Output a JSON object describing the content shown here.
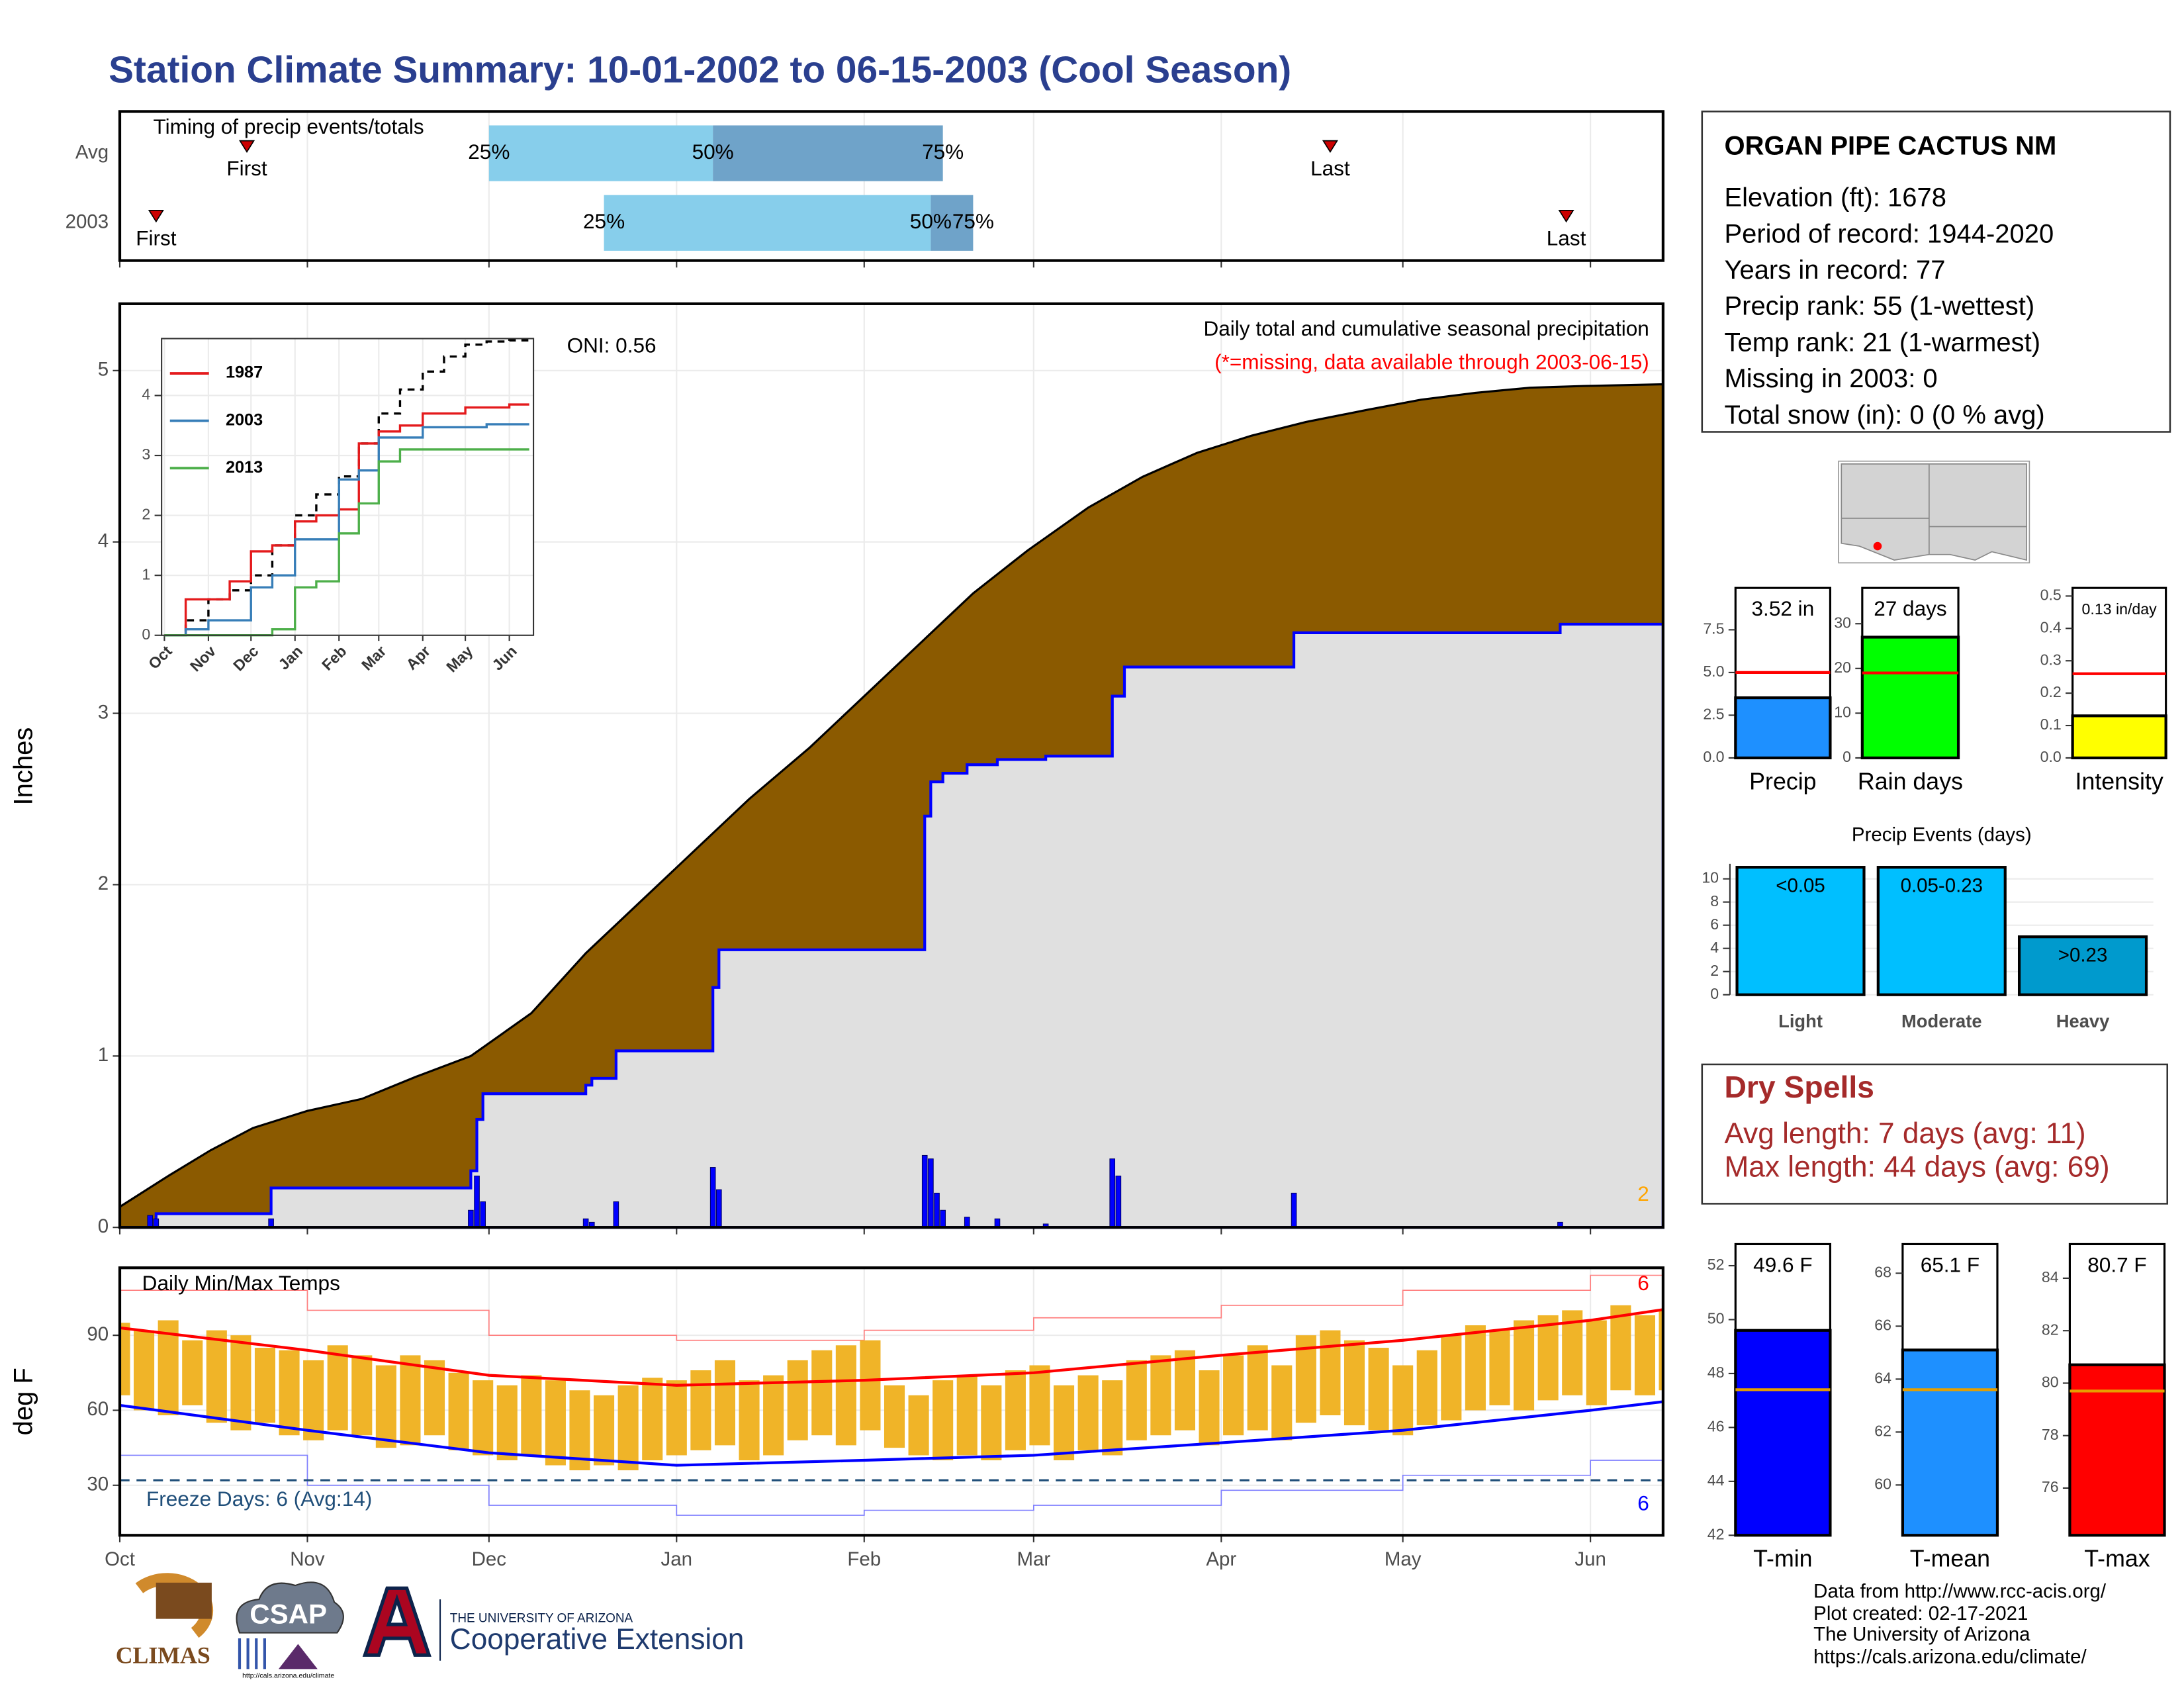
{
  "title": "Station Climate Summary: 10-01-2002 to 06-15-2003 (Cool Season)",
  "station": {
    "name": "ORGAN PIPE CACTUS NM",
    "lines": [
      "Elevation (ft): 1678",
      "Period of record: 1944-2020",
      "Years in record: 77",
      "Precip rank: 55 (1-wettest)",
      "Temp rank: 21 (1-warmest)",
      "Missing in 2003: 0",
      "Total snow (in): 0 (0 % avg)"
    ]
  },
  "dry_spells": {
    "title": "Dry Spells",
    "lines": [
      "Avg length: 7 days (avg: 11)",
      "Max length: 44 days (avg: 69)"
    ]
  },
  "footer": [
    "Data from http://www.rcc-acis.org/",
    "Plot created: 02-17-2021",
    "The University of Arizona",
    "https://cals.arizona.edu/climate/"
  ],
  "logos": {
    "climas": "CLIMAS",
    "csap": "CSAP",
    "csap_url": "http://cals.arizona.edu/climate",
    "university": "THE UNIVERSITY OF ARIZONA",
    "extension": "Cooperative Extension"
  },
  "chart_data": [
    {
      "type": "timing",
      "title": "Timing of precip events/totals",
      "categories": [
        "Avg",
        "2003"
      ],
      "series": [
        {
          "name": "First",
          "values": [
            21,
            6
          ]
        },
        {
          "name": "25%",
          "values": [
            61,
            80
          ]
        },
        {
          "name": "50%",
          "values": [
            98,
            134
          ]
        },
        {
          "name": "75%",
          "values": [
            136,
            141
          ]
        },
        {
          "name": "Last",
          "values": [
            200,
            239
          ]
        }
      ],
      "colors": [
        "#87ceeb",
        "#6fa3c9"
      ],
      "marker_color": "#cc0000",
      "xlim": [
        0,
        255
      ],
      "xticks": [
        0,
        31,
        61,
        92,
        123,
        151,
        182,
        212,
        243
      ],
      "grid": true
    },
    {
      "type": "cumulative",
      "title": "Daily total and cumulative seasonal precipitation",
      "subtitle": "(*=missing, data available through 2003-06-15)",
      "annotation": "ONI: 0.56",
      "corner_label": 2,
      "ylabel": "Inches",
      "xlim": [
        0,
        255
      ],
      "ylim": [
        0,
        5.39
      ],
      "xticks": [
        0,
        31,
        61,
        92,
        123,
        151,
        182,
        212,
        243
      ],
      "yticks": [
        0,
        1,
        2,
        3,
        4,
        5
      ],
      "grid": true,
      "average": {
        "color": "#8b5a00",
        "x": [
          0,
          8,
          15,
          22,
          31,
          40,
          49,
          58,
          68,
          77,
          86,
          95,
          104,
          114,
          123,
          132,
          141,
          150,
          160,
          169,
          178,
          187,
          196,
          206,
          215,
          224,
          233,
          242,
          255
        ],
        "values": [
          0.12,
          0.3,
          0.45,
          0.58,
          0.68,
          0.75,
          0.88,
          1.0,
          1.25,
          1.6,
          1.9,
          2.2,
          2.5,
          2.8,
          3.1,
          3.4,
          3.7,
          3.95,
          4.2,
          4.38,
          4.52,
          4.62,
          4.7,
          4.77,
          4.83,
          4.87,
          4.9,
          4.91,
          4.92
        ]
      },
      "cumulative": {
        "color": "#0000ff",
        "fill": "#e0e0e0",
        "x": [
          0,
          6,
          25,
          58,
          59,
          60,
          77,
          78,
          82,
          98,
          99,
          133,
          134,
          136,
          140,
          145,
          153,
          164,
          166,
          194,
          238,
          255
        ],
        "values": [
          0,
          0.08,
          0.23,
          0.33,
          0.63,
          0.78,
          0.83,
          0.87,
          1.03,
          1.4,
          1.62,
          2.4,
          2.6,
          2.65,
          2.7,
          2.73,
          2.75,
          3.1,
          3.27,
          3.47,
          3.52,
          3.52
        ]
      },
      "daily": {
        "color": "#0000ff",
        "x": [
          5,
          6,
          25,
          58,
          59,
          60,
          77,
          78,
          82,
          98,
          99,
          133,
          134,
          135,
          136,
          140,
          145,
          153,
          164,
          165,
          194,
          238
        ],
        "values": [
          0.07,
          0.05,
          0.05,
          0.1,
          0.3,
          0.15,
          0.05,
          0.03,
          0.15,
          0.35,
          0.22,
          0.42,
          0.4,
          0.2,
          0.1,
          0.06,
          0.05,
          0.02,
          0.4,
          0.3,
          0.2,
          0.03
        ]
      }
    },
    {
      "type": "line",
      "legend": "top-left",
      "xlim": [
        -2,
        260
      ],
      "ylim": [
        0,
        4.95
      ],
      "xticks": [
        {
          "value": 0,
          "label": "Oct"
        },
        {
          "value": 31,
          "label": "Nov"
        },
        {
          "value": 61,
          "label": "Dec"
        },
        {
          "value": 92,
          "label": "Jan"
        },
        {
          "value": 123,
          "label": "Feb"
        },
        {
          "value": 151,
          "label": "Mar"
        },
        {
          "value": 182,
          "label": "Apr"
        },
        {
          "value": 212,
          "label": "May"
        },
        {
          "value": 243,
          "label": "Jun"
        }
      ],
      "yticks": [
        0,
        1,
        2,
        3,
        4
      ],
      "grid": true,
      "x": [
        0,
        15,
        31,
        46,
        61,
        76,
        92,
        107,
        123,
        137,
        151,
        166,
        182,
        197,
        212,
        227,
        243,
        257
      ],
      "series": [
        {
          "color": "#000000",
          "dashed": true,
          "values": [
            0,
            0.25,
            0.6,
            0.75,
            1.0,
            1.5,
            2.0,
            2.35,
            2.65,
            3.2,
            3.7,
            4.1,
            4.4,
            4.65,
            4.85,
            4.9,
            4.92,
            4.93
          ]
        },
        {
          "name": "1987",
          "color": "#e41a1c",
          "values": [
            0,
            0.6,
            0.6,
            0.9,
            1.4,
            1.5,
            1.9,
            2.0,
            2.1,
            3.2,
            3.4,
            3.5,
            3.7,
            3.7,
            3.8,
            3.8,
            3.85,
            3.85
          ]
        },
        {
          "name": "2003",
          "color": "#377eb8",
          "values": [
            0,
            0.1,
            0.25,
            0.25,
            0.8,
            1.0,
            1.6,
            1.6,
            2.6,
            2.75,
            3.3,
            3.3,
            3.47,
            3.47,
            3.47,
            3.52,
            3.52,
            3.52
          ]
        },
        {
          "name": "2013",
          "color": "#4daf4a",
          "values": [
            0,
            0,
            0,
            0,
            0,
            0.1,
            0.8,
            0.9,
            1.7,
            2.2,
            2.9,
            3.1,
            3.1,
            3.1,
            3.1,
            3.1,
            3.1,
            3.1
          ]
        }
      ]
    },
    {
      "type": "temps",
      "title": "Daily Min/Max Temps",
      "annotation": "Freeze Days: 6 (Avg:14)",
      "ylabel": "deg F",
      "record_high_count": 6,
      "record_low_count": 6,
      "freeze_line": 32,
      "xlim": [
        0,
        255
      ],
      "ylim": [
        10,
        117
      ],
      "yticks": [
        30,
        60,
        90
      ],
      "grid": true,
      "bar_color": "#f0b428",
      "xticks": [
        {
          "value": 0,
          "label": "Oct"
        },
        {
          "value": 31,
          "label": "Nov"
        },
        {
          "value": 61,
          "label": "Dec"
        },
        {
          "value": 92,
          "label": "Jan"
        },
        {
          "value": 123,
          "label": "Feb"
        },
        {
          "value": 151,
          "label": "Mar"
        },
        {
          "value": 182,
          "label": "Apr"
        },
        {
          "value": 212,
          "label": "May"
        },
        {
          "value": 243,
          "label": "Jun"
        }
      ],
      "x": [
        0,
        4,
        8,
        12,
        16,
        20,
        24,
        28,
        32,
        36,
        40,
        44,
        48,
        52,
        56,
        60,
        64,
        68,
        72,
        76,
        80,
        84,
        88,
        92,
        96,
        100,
        104,
        108,
        112,
        116,
        120,
        124,
        128,
        132,
        136,
        140,
        144,
        148,
        152,
        156,
        160,
        164,
        168,
        172,
        176,
        180,
        184,
        188,
        192,
        196,
        200,
        204,
        208,
        212,
        216,
        220,
        224,
        228,
        232,
        236,
        240,
        244,
        248,
        252,
        256
      ],
      "series": [
        {
          "values": [
            95,
            92,
            96,
            88,
            92,
            90,
            85,
            84,
            80,
            86,
            82,
            78,
            82,
            80,
            75,
            72,
            70,
            74,
            72,
            68,
            66,
            70,
            73,
            72,
            76,
            80,
            72,
            74,
            80,
            84,
            86,
            88,
            70,
            66,
            72,
            74,
            70,
            76,
            78,
            70,
            74,
            72,
            80,
            82,
            84,
            76,
            82,
            86,
            78,
            90,
            92,
            88,
            85,
            78,
            84,
            90,
            94,
            92,
            96,
            98,
            100,
            96,
            102,
            98,
            100
          ]
        },
        {
          "values": [
            66,
            60,
            58,
            62,
            55,
            52,
            55,
            50,
            48,
            52,
            50,
            45,
            46,
            50,
            44,
            42,
            40,
            42,
            38,
            36,
            38,
            36,
            40,
            42,
            44,
            46,
            40,
            42,
            48,
            50,
            46,
            52,
            45,
            42,
            40,
            42,
            40,
            44,
            46,
            40,
            44,
            42,
            48,
            50,
            52,
            46,
            50,
            52,
            48,
            55,
            58,
            54,
            52,
            50,
            54,
            56,
            60,
            62,
            60,
            64,
            66,
            62,
            68,
            66,
            68
          ]
        }
      ],
      "normals": {
        "x": [
          0,
          31,
          61,
          92,
          123,
          151,
          182,
          212,
          243,
          257
        ],
        "series": [
          {
            "color": "#ff0000",
            "width": 2,
            "values": [
              93,
              84,
              74,
              70,
              72,
              75,
              82,
              88,
              96,
              101
            ]
          },
          {
            "color": "#0000ff",
            "width": 2,
            "values": [
              62,
              52,
              43,
              38,
              40,
              42,
              47,
              52,
              60,
              64
            ]
          },
          {
            "color": "#ff8080",
            "width": 0.8,
            "values": [
              108,
              100,
              90,
              88,
              92,
              97,
              102,
              108,
              114,
              116
            ]
          },
          {
            "color": "#8080ff",
            "width": 0.8,
            "values": [
              42,
              30,
              22,
              18,
              20,
              22,
              28,
              34,
              40,
              48
            ]
          }
        ]
      }
    },
    {
      "type": "gauge",
      "categories": [
        "Precip"
      ],
      "values": [
        3.52
      ],
      "value_labels": [
        "3.52 in"
      ],
      "avg": 5.0,
      "avg_color": "#ff0000",
      "color": "#1e90ff",
      "ylim": [
        0,
        9.95
      ],
      "yticks": [
        {
          "value": 0,
          "label": "0.0"
        },
        2.5,
        {
          "value": 5,
          "label": "5.0"
        },
        7.5
      ]
    },
    {
      "type": "gauge",
      "categories": [
        "Rain days"
      ],
      "values": [
        27
      ],
      "value_labels": [
        "27 days"
      ],
      "avg": 19,
      "avg_color": "#ff0000",
      "color": "#00ff00",
      "ylim": [
        0,
        38
      ],
      "yticks": [
        0,
        10,
        20,
        30
      ]
    },
    {
      "type": "gauge",
      "categories": [
        "Intensity"
      ],
      "values": [
        0.13
      ],
      "value_labels": [
        "0.13 in/day"
      ],
      "avg": 0.26,
      "avg_color": "#ff0000",
      "color": "#ffff00",
      "ylim": [
        0,
        0.525
      ],
      "yticks": [
        {
          "value": 0,
          "label": "0.0"
        },
        0.1,
        0.2,
        0.3,
        0.4,
        0.5
      ]
    },
    {
      "type": "bar",
      "title": "Precip Events (days)",
      "categories": [
        "Light",
        "Moderate",
        "Heavy"
      ],
      "bar_labels": [
        "<0.05",
        "0.05-0.23",
        ">0.23"
      ],
      "values": [
        11,
        11,
        5
      ],
      "colors": [
        "#00bfff",
        "#00bfff",
        "#009acd"
      ],
      "ylim": [
        0,
        11.3
      ],
      "yticks": [
        0,
        2,
        4,
        6,
        8,
        10
      ],
      "grid": true
    },
    {
      "type": "gauge",
      "categories": [
        "T-min"
      ],
      "values": [
        49.6
      ],
      "value_labels": [
        "49.6 F"
      ],
      "avg": 47.4,
      "avg_color": "#e69f00",
      "color": "#0000ff",
      "ylim": [
        42,
        52.8
      ],
      "yticks": [
        42,
        44,
        46,
        48,
        50,
        52
      ]
    },
    {
      "type": "gauge",
      "categories": [
        "T-mean"
      ],
      "values": [
        65.1
      ],
      "value_labels": [
        "65.1 F"
      ],
      "avg": 63.6,
      "avg_color": "#e69f00",
      "color": "#1e90ff",
      "ylim": [
        58.1,
        69.1
      ],
      "yticks": [
        60,
        62,
        64,
        66,
        68
      ]
    },
    {
      "type": "gauge",
      "categories": [
        "T-max"
      ],
      "values": [
        80.7
      ],
      "value_labels": [
        "80.7 F"
      ],
      "avg": 79.7,
      "avg_color": "#e69f00",
      "color": "#ff0000",
      "ylim": [
        74.2,
        85.3
      ],
      "yticks": [
        76,
        78,
        80,
        82,
        84
      ]
    }
  ]
}
